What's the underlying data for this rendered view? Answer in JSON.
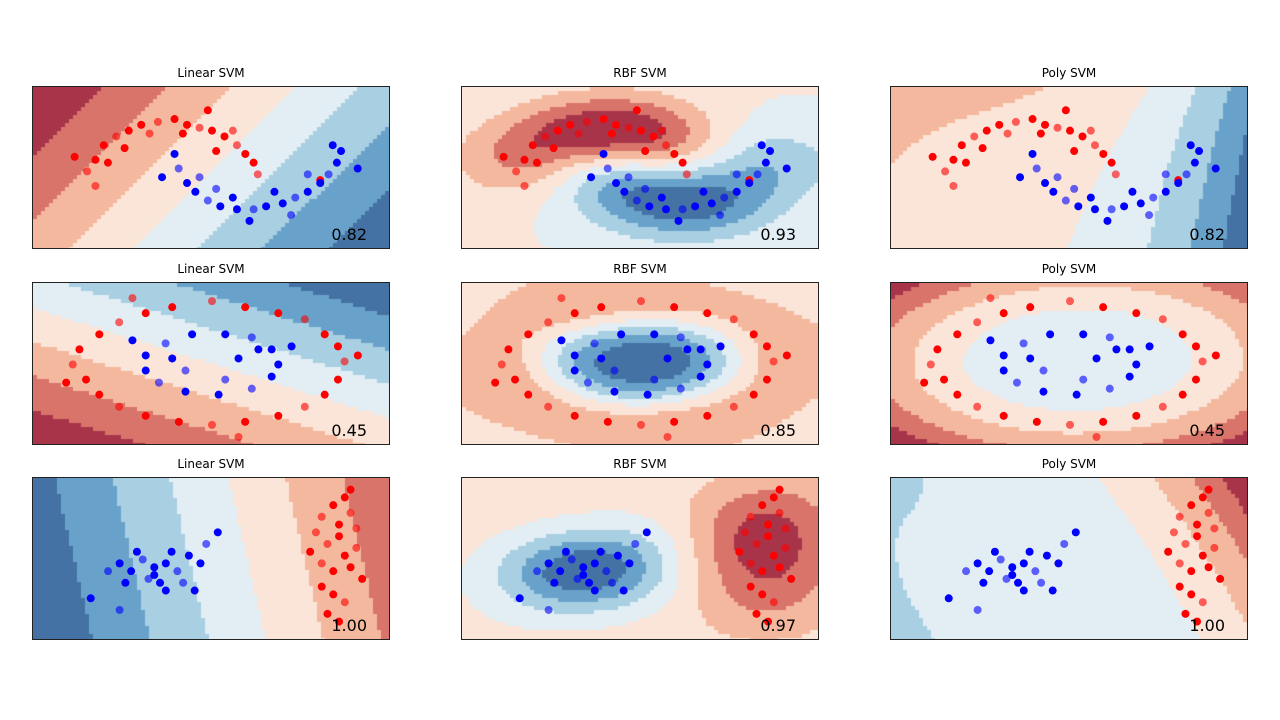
{
  "chart_data": [
    {
      "type": "scatter",
      "dataset": "moons",
      "xlim": [
        -1.7,
        2.6
      ],
      "ylim": [
        -1.2,
        1.6
      ],
      "red": [
        [
          -1.05,
          0.15
        ],
        [
          -0.95,
          0.35
        ],
        [
          -0.85,
          0.6
        ],
        [
          -0.7,
          0.75
        ],
        [
          -0.55,
          0.85
        ],
        [
          -0.4,
          0.95
        ],
        [
          -0.2,
          1.0
        ],
        [
          0,
          1.05
        ],
        [
          0.15,
          0.95
        ],
        [
          0.3,
          0.9
        ],
        [
          0.45,
          0.85
        ],
        [
          0.6,
          0.75
        ],
        [
          0.75,
          0.6
        ],
        [
          0.85,
          0.45
        ],
        [
          0.95,
          0.3
        ],
        [
          1.0,
          0.1
        ],
        [
          -0.8,
          0.3
        ],
        [
          -0.6,
          0.55
        ],
        [
          -0.3,
          0.8
        ],
        [
          0.1,
          0.8
        ],
        [
          0.4,
          1.2
        ],
        [
          0.7,
          0.85
        ],
        [
          -1.2,
          0.4
        ],
        [
          0.5,
          0.5
        ],
        [
          -0.95,
          -0.1
        ],
        [
          1.75,
          0.0
        ]
      ],
      "blue": [
        [
          0,
          0.45
        ],
        [
          0.05,
          0.2
        ],
        [
          0.15,
          -0.05
        ],
        [
          0.25,
          -0.2
        ],
        [
          0.4,
          -0.35
        ],
        [
          0.55,
          -0.45
        ],
        [
          0.75,
          -0.5
        ],
        [
          0.95,
          -0.5
        ],
        [
          1.1,
          -0.45
        ],
        [
          1.3,
          -0.4
        ],
        [
          1.45,
          -0.3
        ],
        [
          1.6,
          -0.2
        ],
        [
          1.75,
          -0.05
        ],
        [
          1.85,
          0.1
        ],
        [
          1.95,
          0.3
        ],
        [
          2.0,
          0.5
        ],
        [
          0.3,
          0.05
        ],
        [
          0.7,
          -0.3
        ],
        [
          1.2,
          -0.2
        ],
        [
          1.6,
          0.1
        ],
        [
          1.9,
          0.6
        ],
        [
          0.9,
          -0.7
        ],
        [
          1.4,
          -0.6
        ],
        [
          2.2,
          0.2
        ],
        [
          -0.15,
          0.05
        ],
        [
          0.5,
          -0.15
        ]
      ],
      "panels": [
        {
          "title": "Linear SVM",
          "kernel": "linear",
          "score": "0.82"
        },
        {
          "title": "RBF SVM",
          "kernel": "rbf",
          "score": "0.93"
        },
        {
          "title": "Poly SVM",
          "kernel": "poly",
          "score": "0.82"
        }
      ]
    },
    {
      "type": "scatter",
      "dataset": "circles",
      "xlim": [
        -1.35,
        1.35
      ],
      "ylim": [
        -1.35,
        1.35
      ],
      "red": [
        [
          1.0,
          0.05
        ],
        [
          0.95,
          0.3
        ],
        [
          0.85,
          0.5
        ],
        [
          0.7,
          0.75
        ],
        [
          0.5,
          0.85
        ],
        [
          0.25,
          0.95
        ],
        [
          0.0,
          1.05
        ],
        [
          -0.3,
          0.95
        ],
        [
          -0.5,
          0.85
        ],
        [
          -0.7,
          0.7
        ],
        [
          -0.85,
          0.5
        ],
        [
          -1.0,
          0.25
        ],
        [
          -1.05,
          0.0
        ],
        [
          -0.95,
          -0.25
        ],
        [
          -0.85,
          -0.5
        ],
        [
          -0.7,
          -0.7
        ],
        [
          -0.5,
          -0.85
        ],
        [
          -0.25,
          -0.95
        ],
        [
          0.0,
          -1.0
        ],
        [
          0.25,
          -0.95
        ],
        [
          0.5,
          -0.85
        ],
        [
          0.7,
          -0.7
        ],
        [
          0.85,
          -0.5
        ],
        [
          0.95,
          -0.25
        ],
        [
          -0.6,
          1.1
        ],
        [
          1.1,
          0.15
        ],
        [
          -1.1,
          -0.3
        ],
        [
          0.2,
          -1.2
        ]
      ],
      "blue": [
        [
          0.5,
          0
        ],
        [
          0.45,
          0.25
        ],
        [
          0.3,
          0.45
        ],
        [
          0.1,
          0.5
        ],
        [
          -0.15,
          0.5
        ],
        [
          -0.35,
          0.35
        ],
        [
          -0.5,
          0.15
        ],
        [
          -0.5,
          -0.1
        ],
        [
          -0.4,
          -0.3
        ],
        [
          -0.2,
          -0.45
        ],
        [
          0.05,
          -0.5
        ],
        [
          0.3,
          -0.4
        ],
        [
          0.45,
          -0.2
        ],
        [
          0.2,
          0.1
        ],
        [
          -0.2,
          -0.1
        ],
        [
          0.6,
          0.3
        ],
        [
          -0.6,
          0.4
        ],
        [
          0.1,
          -0.25
        ],
        [
          -0.3,
          0.1
        ],
        [
          0.35,
          0.25
        ]
      ],
      "panels": [
        {
          "title": "Linear SVM",
          "kernel": "linear",
          "score": "0.45"
        },
        {
          "title": "RBF SVM",
          "kernel": "rbf",
          "score": "0.85"
        },
        {
          "title": "Poly SVM",
          "kernel": "poly",
          "score": "0.45"
        }
      ]
    },
    {
      "type": "scatter",
      "dataset": "linearly separable",
      "xlim": [
        -2.0,
        4.2
      ],
      "ylim": [
        -1.0,
        3.2
      ],
      "red": [
        [
          3.0,
          1.0
        ],
        [
          3.2,
          0.8
        ],
        [
          3.4,
          1.2
        ],
        [
          3.1,
          1.5
        ],
        [
          3.3,
          1.7
        ],
        [
          3.5,
          0.9
        ],
        [
          3.6,
          1.4
        ],
        [
          3.0,
          0.4
        ],
        [
          3.2,
          0.2
        ],
        [
          3.4,
          0.0
        ],
        [
          3.1,
          -0.3
        ],
        [
          3.3,
          2.0
        ],
        [
          3.5,
          2.3
        ],
        [
          3.2,
          2.5
        ],
        [
          3.4,
          2.7
        ],
        [
          3.6,
          1.9
        ],
        [
          2.8,
          1.3
        ],
        [
          3.7,
          0.6
        ],
        [
          2.9,
          1.8
        ],
        [
          3.3,
          -0.5
        ],
        [
          3.5,
          2.9
        ],
        [
          3.0,
          2.2
        ]
      ],
      "blue": [
        [
          -0.5,
          1.0
        ],
        [
          -0.3,
          0.8
        ],
        [
          -0.1,
          1.1
        ],
        [
          0.1,
          0.9
        ],
        [
          0.3,
          1.0
        ],
        [
          0.5,
          0.8
        ],
        [
          0.7,
          1.2
        ],
        [
          0.9,
          1.0
        ],
        [
          0.0,
          0.6
        ],
        [
          0.2,
          0.5
        ],
        [
          -0.4,
          0.5
        ],
        [
          0.6,
          0.5
        ],
        [
          0.4,
          1.3
        ],
        [
          -0.2,
          1.3
        ],
        [
          1.0,
          1.5
        ],
        [
          1.2,
          1.8
        ],
        [
          -1.0,
          0.1
        ],
        [
          -0.5,
          -0.2
        ],
        [
          0.8,
          0.3
        ],
        [
          0.1,
          0.7
        ],
        [
          -0.7,
          0.8
        ],
        [
          0.3,
          0.3
        ]
      ],
      "panels": [
        {
          "title": "Linear SVM",
          "kernel": "linear",
          "score": "1.00"
        },
        {
          "title": "RBF SVM",
          "kernel": "rbf",
          "score": "0.97"
        },
        {
          "title": "Poly SVM",
          "kernel": "poly",
          "score": "1.00"
        }
      ]
    }
  ],
  "colors": {
    "red_points": "#ff0000",
    "blue_points": "#0000ff",
    "contour_levels": [
      "#a8344a",
      "#d8746a",
      "#f4b89e",
      "#fbe4d8",
      "#e2eef4",
      "#a9cfe3",
      "#68a2cb",
      "#4472a4"
    ]
  }
}
